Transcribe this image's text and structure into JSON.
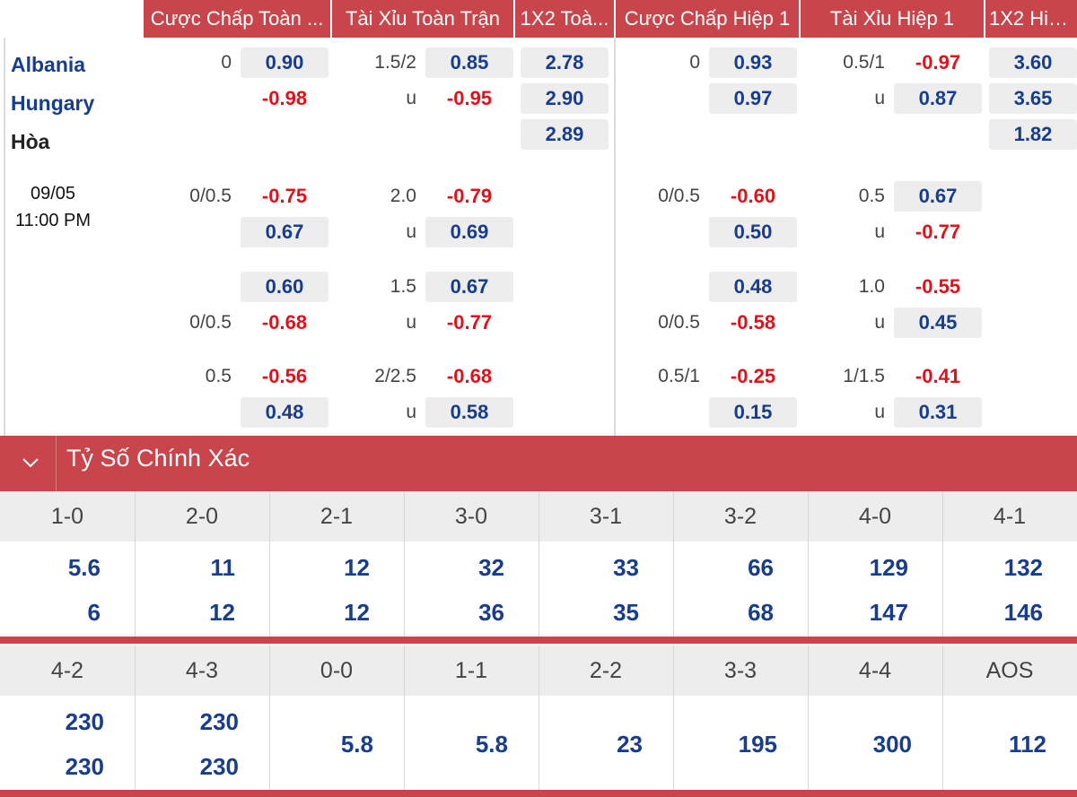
{
  "header": [
    {
      "label": "Cược Chấp Toàn ..."
    },
    {
      "label": "Tài Xỉu Toàn Trận"
    },
    {
      "label": "1X2 Toà..."
    },
    {
      "label": "Cược Chấp Hiệp 1"
    },
    {
      "label": "Tài Xỉu Hiệp 1"
    },
    {
      "label": "1X2 Hiệ..."
    }
  ],
  "match": {
    "home": "Albania",
    "away": "Hungary",
    "draw": "Hòa",
    "date": "09/05",
    "time": "11:00 PM"
  },
  "odds": {
    "row1": {
      "ft_hdp_line": "0",
      "ft_hdp_home": "0.90",
      "ft_hdp_away": "-0.98",
      "ft_ou_line": "1.5/2",
      "ft_ou_u": "u",
      "ft_ou_over": "0.85",
      "ft_ou_under": "-0.95",
      "ft_1x2_home": "2.78",
      "ft_1x2_away": "2.90",
      "ft_1x2_draw": "2.89",
      "h1_hdp_line": "0",
      "h1_hdp_home": "0.93",
      "h1_hdp_away": "0.97",
      "h1_ou_line": "0.5/1",
      "h1_ou_u": "u",
      "h1_ou_over": "-0.97",
      "h1_ou_under": "0.87",
      "h1_1x2_home": "3.60",
      "h1_1x2_away": "3.65",
      "h1_1x2_draw": "1.82"
    },
    "row2": {
      "ft_hdp_line": "0/0.5",
      "ft_hdp_home": "-0.75",
      "ft_hdp_away": "0.67",
      "ft_ou_line": "2.0",
      "ft_ou_u": "u",
      "ft_ou_over": "-0.79",
      "ft_ou_under": "0.69",
      "h1_hdp_line": "0/0.5",
      "h1_hdp_home": "-0.60",
      "h1_hdp_away": "0.50",
      "h1_ou_line": "0.5",
      "h1_ou_u": "u",
      "h1_ou_over": "0.67",
      "h1_ou_under": "-0.77"
    },
    "row3": {
      "ft_hdp_line": "0/0.5",
      "ft_hdp_home": "0.60",
      "ft_hdp_away": "-0.68",
      "ft_ou_line": "1.5",
      "ft_ou_u": "u",
      "ft_ou_over": "0.67",
      "ft_ou_under": "-0.77",
      "h1_hdp_line": "0/0.5",
      "h1_hdp_home": "0.48",
      "h1_hdp_away": "-0.58",
      "h1_ou_line": "1.0",
      "h1_ou_u": "u",
      "h1_ou_over": "-0.55",
      "h1_ou_under": "0.45"
    },
    "row4": {
      "ft_hdp_line": "0.5",
      "ft_hdp_home": "-0.56",
      "ft_hdp_away": "0.48",
      "ft_ou_line": "2/2.5",
      "ft_ou_u": "u",
      "ft_ou_over": "-0.68",
      "ft_ou_under": "0.58",
      "h1_hdp_line": "0.5/1",
      "h1_hdp_home": "-0.25",
      "h1_hdp_away": "0.15",
      "h1_ou_line": "1/1.5",
      "h1_ou_u": "u",
      "h1_ou_over": "-0.41",
      "h1_ou_under": "0.31"
    }
  },
  "correct_score": {
    "title": "Tỷ Số Chính Xác",
    "row1": [
      {
        "score": "1-0",
        "home": "5.6",
        "away": "6"
      },
      {
        "score": "2-0",
        "home": "11",
        "away": "12"
      },
      {
        "score": "2-1",
        "home": "12",
        "away": "12"
      },
      {
        "score": "3-0",
        "home": "32",
        "away": "36"
      },
      {
        "score": "3-1",
        "home": "33",
        "away": "35"
      },
      {
        "score": "3-2",
        "home": "66",
        "away": "68"
      },
      {
        "score": "4-0",
        "home": "129",
        "away": "147"
      },
      {
        "score": "4-1",
        "home": "132",
        "away": "146"
      }
    ],
    "row2": [
      {
        "score": "4-2",
        "home": "230",
        "away": "230"
      },
      {
        "score": "4-3",
        "home": "230",
        "away": "230"
      },
      {
        "score": "0-0",
        "single": "5.8"
      },
      {
        "score": "1-1",
        "single": "5.8"
      },
      {
        "score": "2-2",
        "single": "23"
      },
      {
        "score": "3-3",
        "single": "195"
      },
      {
        "score": "4-4",
        "single": "300"
      },
      {
        "score": "AOS",
        "single": "112"
      }
    ]
  },
  "colors": {
    "accent_red": "#c8464b",
    "positive_odds": "#173d8c",
    "negative_odds": "#e3101a"
  }
}
